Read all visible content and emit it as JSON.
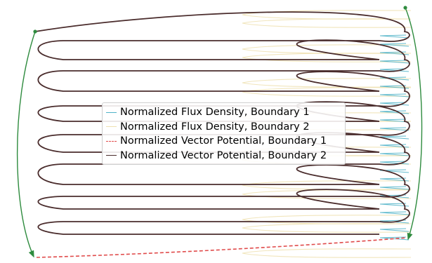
{
  "chart_data": {
    "type": "line",
    "title": "",
    "xlabel": "",
    "ylabel": "",
    "axes_visible": false,
    "grid": false,
    "legend_position": "center-left",
    "series": [
      {
        "name": "Normalized Flux Density, Boundary 1",
        "color": "#4fb3c8",
        "style": "solid",
        "shape": "small oscillating spikes near the right edge, about 0.9 to 1.0 of the horizontal range"
      },
      {
        "name": "Normalized Flux Density, Boundary 2",
        "color": "#efe0b0",
        "style": "solid",
        "shape": "pale oscillating loops, about 0.55 to 1.0 of the horizontal range"
      },
      {
        "name": "Normalized Vector Potential, Boundary 1",
        "color": "#e04b4b",
        "style": "dashed",
        "shape": "near-flat line along the bottom, rising slightly from left to right"
      },
      {
        "name": "Normalized Vector Potential, Boundary 2",
        "color": "#4a2c2c",
        "style": "solid",
        "shape": "serpentine curve sweeping across the full width, 14 passes from top to bottom"
      }
    ],
    "annotations": [
      "green arrow from the top-left point curving down to the bottom-left",
      "green arrow from the top-right point curving down to the bottom-right"
    ]
  }
}
